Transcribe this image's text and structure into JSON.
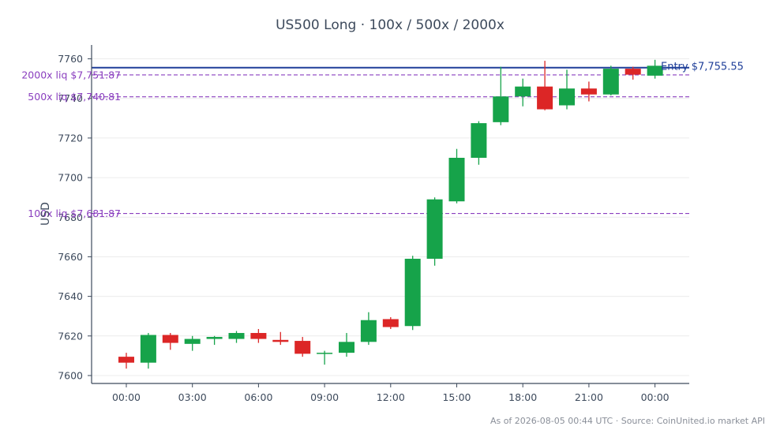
{
  "chart_data": {
    "type": "candlestick",
    "title": "US500 Long · 100x / 500x / 2000x",
    "ylabel": "USD",
    "xlabel": "",
    "ylim": [
      7596,
      7767
    ],
    "yticks": [
      7600,
      7620,
      7640,
      7660,
      7680,
      7700,
      7720,
      7740,
      7760
    ],
    "xticks": [
      {
        "label": "00:00",
        "index": 0
      },
      {
        "label": "03:00",
        "index": 3
      },
      {
        "label": "06:00",
        "index": 6
      },
      {
        "label": "09:00",
        "index": 9
      },
      {
        "label": "12:00",
        "index": 12
      },
      {
        "label": "15:00",
        "index": 15
      },
      {
        "label": "18:00",
        "index": 18
      },
      {
        "label": "21:00",
        "index": 21
      },
      {
        "label": "00:00",
        "index": 24
      }
    ],
    "candles": [
      {
        "o": 7609.5,
        "h": 7611.5,
        "l": 7603.5,
        "c": 7606.5
      },
      {
        "o": 7606.5,
        "h": 7621.5,
        "l": 7603.5,
        "c": 7620.5
      },
      {
        "o": 7620.5,
        "h": 7621.5,
        "l": 7613.0,
        "c": 7616.5
      },
      {
        "o": 7616.0,
        "h": 7620.0,
        "l": 7612.5,
        "c": 7618.5
      },
      {
        "o": 7618.5,
        "h": 7620.0,
        "l": 7615.5,
        "c": 7619.5
      },
      {
        "o": 7618.5,
        "h": 7622.5,
        "l": 7616.5,
        "c": 7621.5
      },
      {
        "o": 7621.5,
        "h": 7623.5,
        "l": 7616.5,
        "c": 7618.5
      },
      {
        "o": 7618.0,
        "h": 7622.0,
        "l": 7615.5,
        "c": 7617.0
      },
      {
        "o": 7617.5,
        "h": 7619.5,
        "l": 7609.5,
        "c": 7611.0
      },
      {
        "o": 7611.0,
        "h": 7612.5,
        "l": 7605.5,
        "c": 7611.5
      },
      {
        "o": 7611.5,
        "h": 7621.5,
        "l": 7609.5,
        "c": 7617.0
      },
      {
        "o": 7617.0,
        "h": 7632.0,
        "l": 7615.5,
        "c": 7628.0
      },
      {
        "o": 7628.5,
        "h": 7629.5,
        "l": 7623.5,
        "c": 7624.5
      },
      {
        "o": 7625.0,
        "h": 7660.5,
        "l": 7623.0,
        "c": 7659.0
      },
      {
        "o": 7659.0,
        "h": 7690.0,
        "l": 7655.5,
        "c": 7689.0
      },
      {
        "o": 7688.0,
        "h": 7714.5,
        "l": 7687.0,
        "c": 7710.0
      },
      {
        "o": 7710.0,
        "h": 7728.5,
        "l": 7706.5,
        "c": 7727.5
      },
      {
        "o": 7728.0,
        "h": 7756.0,
        "l": 7726.5,
        "c": 7741.0
      },
      {
        "o": 7741.0,
        "h": 7750.0,
        "l": 7736.0,
        "c": 7746.0
      },
      {
        "o": 7746.0,
        "h": 7759.0,
        "l": 7734.0,
        "c": 7734.5
      },
      {
        "o": 7736.5,
        "h": 7754.5,
        "l": 7734.5,
        "c": 7745.0
      },
      {
        "o": 7745.0,
        "h": 7748.5,
        "l": 7738.5,
        "c": 7742.0
      },
      {
        "o": 7742.0,
        "h": 7756.5,
        "l": 7741.5,
        "c": 7755.0
      },
      {
        "o": 7755.0,
        "h": 7756.0,
        "l": 7749.5,
        "c": 7752.0
      },
      {
        "o": 7751.5,
        "h": 7759.5,
        "l": 7750.0,
        "c": 7756.5
      }
    ],
    "reference_lines": [
      {
        "label": "Entry $7,755.55",
        "value": 7755.55,
        "style": "solid",
        "color": "#1f3f99",
        "label_side": "right"
      },
      {
        "label": "2000x liq $7,751.87",
        "value": 7751.87,
        "style": "dashed",
        "color": "#8a3fbf",
        "label_side": "left"
      },
      {
        "label": "500x liq $7,740.81",
        "value": 7740.81,
        "style": "dashed",
        "color": "#8a3fbf",
        "label_side": "left"
      },
      {
        "label": "100x liq $7,681.87",
        "value": 7681.87,
        "style": "dashed",
        "color": "#8a3fbf",
        "label_side": "left"
      }
    ],
    "colors": {
      "up": "#16a34a",
      "down": "#dc2626",
      "axis": "#3d4a5c",
      "grid": "#ececec"
    },
    "grid": true
  },
  "footer": "As of 2026-08-05 00:44 UTC · Source: CoinUnited.io market API"
}
